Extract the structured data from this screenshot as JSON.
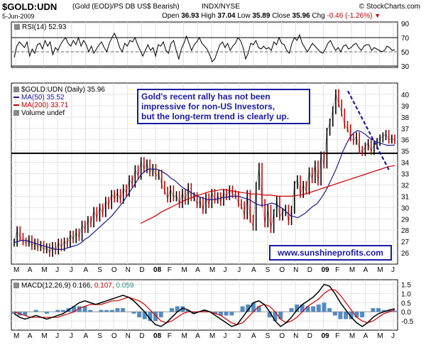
{
  "header": {
    "symbol": "$GOLD:UDN",
    "description": "(Gold (EOD)/PS DB US$ Bearish)",
    "exchange": "INDX/NYSE",
    "source": "© StockCharts.com",
    "date": "5-Jun-2009",
    "open_label": "Open",
    "open": "36.93",
    "high_label": "High",
    "high": "37.04",
    "low_label": "Low",
    "low": "35.89",
    "close_label": "Close",
    "close": "35.96",
    "chg_label": "Chg",
    "chg": "-0.46 (-1.26%)"
  },
  "annotation": {
    "line1": "Gold's recent rally has not been",
    "line2": "impressive for non-US Investors,",
    "line3": "but the long-term trend is clearly up.",
    "url": "www.sunshineprofits.com"
  },
  "colors": {
    "price_up": "#000000",
    "price_down": "#cc0000",
    "ma50": "#1a1a8c",
    "ma200": "#cc0000",
    "macd_line": "#000000",
    "signal_line": "#cc0000",
    "histogram": "#2a6fb0",
    "trendline": "#1a1aa0",
    "macd_last": "#2a8a8a"
  },
  "chart_data": [
    {
      "type": "line",
      "panel": "RSI",
      "legend": "RSI(14) 52.93",
      "ylim": [
        28,
        92
      ],
      "yticks": [
        30,
        50,
        70,
        90
      ],
      "reference_lines": [
        30,
        70
      ],
      "values": [
        42,
        58,
        64,
        60,
        56,
        64,
        44,
        54,
        48,
        60,
        62,
        54,
        66,
        58,
        64,
        46,
        56,
        52,
        60,
        66,
        70,
        62,
        58,
        66,
        60,
        70,
        58,
        66,
        60,
        50,
        58,
        48,
        54,
        60,
        64,
        56,
        50,
        62,
        70,
        76,
        68,
        56,
        50,
        62,
        58,
        66,
        64,
        70,
        60,
        52,
        44,
        52,
        60,
        52,
        56,
        44,
        60,
        58,
        64,
        52,
        48,
        62,
        66,
        52,
        40,
        54,
        62,
        72,
        62,
        52,
        60,
        64,
        70,
        62,
        58,
        54,
        46,
        36,
        40,
        50,
        60,
        64,
        56,
        62,
        52,
        58,
        62,
        70,
        66,
        56,
        40,
        48,
        62,
        60,
        66,
        56,
        54,
        58,
        54,
        56,
        52,
        64,
        60,
        70,
        62,
        60,
        52,
        48,
        62,
        70,
        66,
        74,
        62,
        56,
        50,
        56,
        62,
        58,
        54,
        50,
        48,
        54,
        62,
        66,
        58,
        52,
        56,
        50,
        58,
        60,
        54,
        56,
        60,
        62,
        56,
        52,
        58,
        60,
        60,
        52,
        56,
        54,
        52,
        50,
        52,
        58,
        56,
        52,
        53
      ]
    },
    {
      "type": "line",
      "panel": "Price",
      "title": "$GOLD:UDN (Daily) 35.96",
      "ylim": [
        25,
        41
      ],
      "yticks": [
        26,
        27,
        28,
        29,
        30,
        31,
        32,
        33,
        34,
        35,
        36,
        37,
        38,
        39,
        40
      ],
      "x_tick_labels": [
        "M",
        "A",
        "M",
        "J",
        "J",
        "A",
        "S",
        "O",
        "N",
        "D",
        "08",
        "F",
        "M",
        "A",
        "M",
        "J",
        "J",
        "A",
        "S",
        "O",
        "N",
        "D",
        "09",
        "F",
        "M",
        "A",
        "M",
        "J"
      ],
      "horizontal_line": 34.8,
      "series": [
        {
          "name": "$GOLD:UDN",
          "values": [
            26.9,
            28.0,
            27.4,
            27.0,
            26.9,
            27.2,
            26.6,
            26.9,
            26.5,
            26.7,
            26.3,
            26.5,
            26.0,
            26.6,
            26.2,
            26.9,
            26.5,
            27.0,
            26.8,
            27.6,
            27.2,
            27.8,
            27.4,
            28.5,
            28.1,
            28.9,
            28.6,
            29.7,
            29.1,
            30.0,
            29.5,
            30.6,
            30.2,
            31.2,
            30.8,
            31.3,
            30.7,
            31.7,
            31.3,
            32.5,
            32.1,
            33.4,
            32.8,
            34.1,
            33.4,
            33.9,
            33.1,
            33.5,
            32.8,
            33.0,
            32.0,
            31.5,
            30.8,
            31.6,
            30.9,
            31.1,
            30.3,
            31.3,
            30.6,
            31.8,
            30.9,
            31.0,
            30.3,
            30.6,
            29.8,
            30.9,
            30.3,
            31.3,
            30.7,
            31.0,
            30.5,
            31.3,
            31.0,
            31.6,
            31.2,
            31.1,
            30.4,
            30.2,
            29.3,
            31.2,
            29.0,
            28.3,
            31.9,
            33.6,
            30.4,
            28.6,
            29.9,
            28.1,
            29.5,
            30.7,
            29.2,
            29.6,
            29.9,
            28.8,
            29.8,
            32.0,
            32.5,
            31.2,
            32.0,
            31.5,
            33.2,
            32.5,
            33.8,
            32.3,
            34.6,
            33.8,
            36.7,
            37.5,
            38.6,
            40.1,
            39.2,
            38.4,
            37.3,
            37.0,
            36.2,
            35.9,
            36.3,
            35.1,
            34.9,
            35.4,
            35.7,
            35.0,
            35.5,
            35.8,
            36.1,
            36.3,
            36.5,
            36.0,
            36.1,
            35.96
          ]
        },
        {
          "name": "MA(50) 35.52",
          "values": [
            26.9,
            27.0,
            27.1,
            27.1,
            27.0,
            26.9,
            26.8,
            26.7,
            26.6,
            26.5,
            26.4,
            26.3,
            26.3,
            26.3,
            26.4,
            26.5,
            26.6,
            26.7,
            26.9,
            27.2,
            27.4,
            27.7,
            28.0,
            28.3,
            28.6,
            28.9,
            29.2,
            29.6,
            30.0,
            30.4,
            30.9,
            31.4,
            31.9,
            32.4,
            32.9,
            33.2,
            33.4,
            33.4,
            33.4,
            33.3,
            33.1,
            32.9,
            32.6,
            32.4,
            32.1,
            31.8,
            31.6,
            31.4,
            31.2,
            31.0,
            30.9,
            30.8,
            30.7,
            30.7,
            30.7,
            30.8,
            30.9,
            30.9,
            31.0,
            31.0,
            31.0,
            30.9,
            30.8,
            30.7,
            30.5,
            30.3,
            30.2,
            30.2,
            30.3,
            30.4,
            30.3,
            30.1,
            29.9,
            29.6,
            29.3,
            29.2,
            29.1,
            29.3,
            29.5,
            29.8,
            30.1,
            30.3,
            30.7,
            31.2,
            31.8,
            32.5,
            33.2,
            34.0,
            34.9,
            35.6,
            36.2,
            36.6,
            36.8,
            36.7,
            36.5,
            36.2,
            36.0,
            35.8,
            35.7,
            35.6,
            35.5,
            35.5,
            35.52
          ]
        },
        {
          "name": "MA(200) 33.71",
          "values": [
            28.6,
            28.9,
            29.2,
            29.6,
            29.9,
            30.2,
            30.5,
            30.8,
            31.0,
            31.2,
            31.4,
            31.5,
            31.6,
            31.5,
            31.4,
            31.3,
            31.2,
            31.2,
            31.1,
            31.1,
            31.0,
            31.0,
            31.0,
            31.1,
            31.2,
            31.4,
            31.6,
            31.8,
            32.0,
            32.2,
            32.4,
            32.6,
            32.8,
            33.0,
            33.2,
            33.4,
            33.6,
            33.71
          ]
        },
        {
          "name": "Volume undef",
          "values": []
        }
      ],
      "trendline": {
        "from": 40.3,
        "to": 33.3
      }
    },
    {
      "type": "line",
      "panel": "MACD",
      "legend": "MACD(12,26,9)",
      "macd": "0.166",
      "signal": "0.107",
      "histogram_last": "0.059",
      "ylim": [
        -1.0,
        1.75
      ],
      "yticks": [
        -0.5,
        0.0,
        0.5,
        1.0,
        1.5
      ],
      "series": [
        {
          "name": "MACD",
          "values": [
            -0.1,
            -0.3,
            -0.4,
            -0.3,
            -0.2,
            -0.3,
            -0.4,
            -0.3,
            -0.2,
            -0.1,
            0.1,
            0.3,
            0.5,
            0.6,
            0.5,
            0.4,
            0.5,
            0.6,
            0.7,
            0.8,
            0.9,
            0.8,
            0.6,
            0.3,
            0.0,
            -0.4,
            -0.7,
            -0.8,
            -0.6,
            -0.3,
            0.0,
            0.2,
            0.1,
            -0.1,
            0.0,
            0.1,
            0.0,
            -0.2,
            -0.4,
            -0.6,
            -0.8,
            -0.7,
            -0.3,
            0.1,
            0.5,
            0.6,
            0.4,
            0.0,
            -0.5,
            -0.8,
            -0.6,
            -0.3,
            0.1,
            0.4,
            0.6,
            0.8,
            1.1,
            1.5,
            1.4,
            1.0,
            0.5,
            0.1,
            -0.3,
            -0.6,
            -0.8,
            -0.6,
            -0.3,
            -0.1,
            0.0,
            0.1,
            0.17
          ]
        },
        {
          "name": "Signal",
          "values": [
            0.0,
            -0.1,
            -0.2,
            -0.3,
            -0.3,
            -0.3,
            -0.3,
            -0.3,
            -0.3,
            -0.2,
            -0.1,
            0.0,
            0.2,
            0.3,
            0.4,
            0.4,
            0.4,
            0.5,
            0.6,
            0.6,
            0.7,
            0.8,
            0.7,
            0.6,
            0.4,
            0.1,
            -0.2,
            -0.5,
            -0.6,
            -0.5,
            -0.3,
            -0.1,
            0.0,
            0.0,
            0.0,
            0.0,
            0.0,
            -0.1,
            -0.2,
            -0.4,
            -0.6,
            -0.7,
            -0.6,
            -0.3,
            0.0,
            0.3,
            0.4,
            0.3,
            0.0,
            -0.4,
            -0.6,
            -0.5,
            -0.3,
            0.0,
            0.3,
            0.5,
            0.7,
            1.0,
            1.2,
            1.2,
            0.9,
            0.5,
            0.1,
            -0.3,
            -0.5,
            -0.6,
            -0.5,
            -0.3,
            -0.1,
            0.0,
            0.11
          ]
        }
      ]
    }
  ]
}
